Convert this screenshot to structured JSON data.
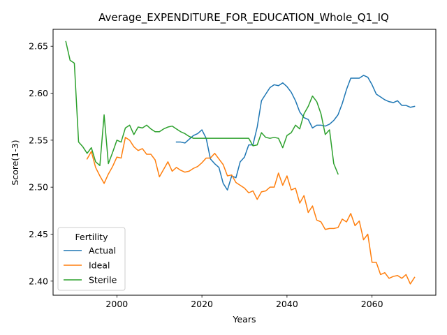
{
  "chart_data": {
    "type": "line",
    "title": "Average_EXPENDITURE_FOR_EDUCATION_Whole_Q1_IQ",
    "xlabel": "Years",
    "ylabel": "Score(1-3)",
    "xlim": [
      1985,
      2075
    ],
    "ylim": [
      2.385,
      2.668
    ],
    "xticks": [
      2000,
      2020,
      2040,
      2060
    ],
    "yticks": [
      2.4,
      2.45,
      2.5,
      2.55,
      2.6,
      2.65
    ],
    "ytick_labels": [
      "2.40",
      "2.45",
      "2.50",
      "2.55",
      "2.60",
      "2.65"
    ],
    "grid": false,
    "legend": {
      "title": "Fertility",
      "position": "lower-left"
    },
    "series": [
      {
        "name": "Actual",
        "color": "#1f77b4",
        "x": [
          2014,
          2015,
          2016,
          2017,
          2018,
          2019,
          2020,
          2021,
          2022,
          2023,
          2024,
          2025,
          2026,
          2027,
          2028,
          2029,
          2030,
          2031,
          2032,
          2033,
          2034,
          2035,
          2036,
          2037,
          2038,
          2039,
          2040,
          2041,
          2042,
          2043,
          2044,
          2045,
          2046,
          2047,
          2048,
          2049,
          2050,
          2051,
          2052,
          2053,
          2054,
          2055,
          2056,
          2057,
          2058,
          2059,
          2060,
          2061,
          2062,
          2063,
          2064,
          2065,
          2066,
          2067,
          2068,
          2069,
          2070
        ],
        "y": [
          2.548,
          2.548,
          2.547,
          2.551,
          2.555,
          2.557,
          2.561,
          2.552,
          2.53,
          2.525,
          2.521,
          2.504,
          2.497,
          2.512,
          2.51,
          2.527,
          2.532,
          2.545,
          2.545,
          2.564,
          2.592,
          2.599,
          2.606,
          2.609,
          2.608,
          2.611,
          2.607,
          2.601,
          2.592,
          2.58,
          2.574,
          2.572,
          2.563,
          2.566,
          2.566,
          2.565,
          2.567,
          2.571,
          2.577,
          2.589,
          2.604,
          2.616,
          2.616,
          2.616,
          2.619,
          2.617,
          2.609,
          2.599,
          2.596,
          2.593,
          2.591,
          2.59,
          2.592,
          2.587,
          2.587,
          2.585,
          2.586
        ]
      },
      {
        "name": "Ideal",
        "color": "#ff7f0e",
        "x": [
          1993,
          1994,
          1995,
          1996,
          1997,
          1998,
          1999,
          2000,
          2001,
          2002,
          2003,
          2004,
          2005,
          2006,
          2007,
          2008,
          2009,
          2010,
          2011,
          2012,
          2013,
          2014,
          2015,
          2016,
          2017,
          2018,
          2019,
          2020,
          2021,
          2022,
          2023,
          2024,
          2025,
          2026,
          2027,
          2028,
          2029,
          2030,
          2031,
          2032,
          2033,
          2034,
          2035,
          2036,
          2037,
          2038,
          2039,
          2040,
          2041,
          2042,
          2043,
          2044,
          2045,
          2046,
          2047,
          2048,
          2049,
          2050,
          2051,
          2052,
          2053,
          2054,
          2055,
          2056,
          2057,
          2058,
          2059,
          2060,
          2061,
          2062,
          2063,
          2064,
          2065,
          2066,
          2067,
          2068,
          2069,
          2070
        ],
        "y": [
          2.53,
          2.538,
          2.521,
          2.512,
          2.504,
          2.514,
          2.522,
          2.532,
          2.531,
          2.553,
          2.55,
          2.543,
          2.539,
          2.541,
          2.535,
          2.535,
          2.529,
          2.511,
          2.519,
          2.527,
          2.517,
          2.521,
          2.518,
          2.516,
          2.517,
          2.52,
          2.522,
          2.526,
          2.531,
          2.531,
          2.536,
          2.53,
          2.524,
          2.512,
          2.513,
          2.505,
          2.502,
          2.499,
          2.494,
          2.496,
          2.487,
          2.495,
          2.496,
          2.5,
          2.5,
          2.515,
          2.502,
          2.512,
          2.497,
          2.499,
          2.483,
          2.491,
          2.473,
          2.48,
          2.465,
          2.463,
          2.455,
          2.456,
          2.456,
          2.457,
          2.466,
          2.463,
          2.472,
          2.459,
          2.464,
          2.444,
          2.45,
          2.42,
          2.42,
          2.407,
          2.409,
          2.403,
          2.405,
          2.406,
          2.403,
          2.407,
          2.397,
          2.404
        ]
      },
      {
        "name": "Sterile",
        "color": "#2ca02c",
        "x": [
          1988,
          1989,
          1990,
          1991,
          1992,
          1993,
          1994,
          1995,
          1996,
          1997,
          1998,
          1999,
          2000,
          2001,
          2002,
          2003,
          2004,
          2005,
          2006,
          2007,
          2008,
          2009,
          2010,
          2011,
          2012,
          2013,
          2014,
          2015,
          2016,
          2017,
          2018,
          2019,
          2020,
          2021,
          2022,
          2023,
          2024,
          2025,
          2026,
          2027,
          2028,
          2029,
          2030,
          2031,
          2032,
          2033,
          2034,
          2035,
          2036,
          2037,
          2038,
          2039,
          2040,
          2041,
          2042,
          2043,
          2044,
          2045,
          2046,
          2047,
          2048,
          2049,
          2050,
          2051,
          2052
        ],
        "y": [
          2.655,
          2.635,
          2.632,
          2.548,
          2.543,
          2.536,
          2.542,
          2.527,
          2.523,
          2.577,
          2.525,
          2.537,
          2.55,
          2.548,
          2.563,
          2.566,
          2.556,
          2.564,
          2.563,
          2.566,
          2.562,
          2.559,
          2.559,
          2.562,
          2.564,
          2.565,
          2.562,
          2.559,
          2.557,
          2.554,
          2.552,
          2.552,
          2.552,
          2.552,
          2.552,
          2.552,
          2.552,
          2.552,
          2.552,
          2.552,
          2.552,
          2.552,
          2.552,
          2.552,
          2.544,
          2.545,
          2.558,
          2.553,
          2.552,
          2.553,
          2.552,
          2.542,
          2.555,
          2.558,
          2.566,
          2.562,
          2.578,
          2.586,
          2.597,
          2.591,
          2.578,
          2.556,
          2.561,
          2.525,
          2.514
        ]
      }
    ]
  }
}
